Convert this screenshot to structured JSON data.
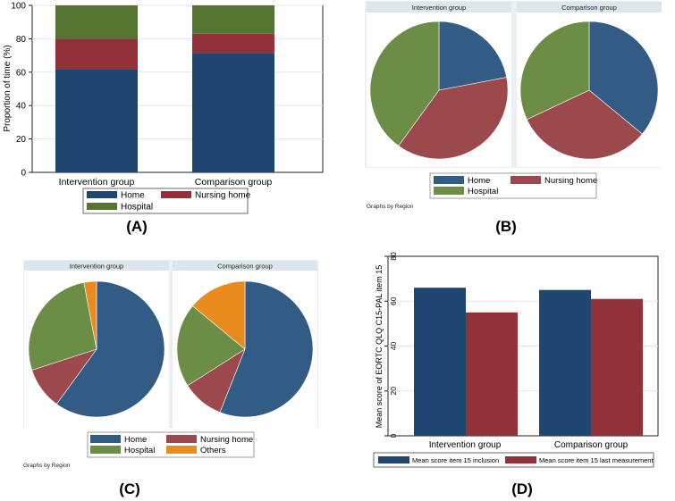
{
  "colors": {
    "home_a": "#1e4670",
    "nursing_a": "#93313a",
    "hospital_a": "#54742f",
    "home": "#325c86",
    "nursing": "#9c494e",
    "hospital": "#6b8d45",
    "others": "#ea8b1d",
    "strip": "#dce6ec",
    "panel_bg": "#e9eff3"
  },
  "chart_data": [
    {
      "panel": "A",
      "type": "bar",
      "stacked": true,
      "categories": [
        "Intervention group",
        "Comparison group"
      ],
      "series": [
        {
          "name": "Home",
          "values": [
            61.5,
            71.5
          ]
        },
        {
          "name": "Nursing home",
          "values": [
            18.5,
            11.5
          ]
        },
        {
          "name": "Hospital",
          "values": [
            20.0,
            17.0
          ]
        }
      ],
      "ylabel": "Proportion of time (%)",
      "ylim": [
        0,
        100
      ],
      "yticks": [
        "0",
        "20",
        "40",
        "60",
        "80",
        "100"
      ],
      "legend": [
        "Home",
        "Nursing home",
        "Hospital"
      ],
      "panel_label": "(A)"
    },
    {
      "panel": "B",
      "type": "pie",
      "categories": [
        "Home",
        "Nursing home",
        "Hospital"
      ],
      "series": [
        {
          "name": "Intervention group",
          "values": [
            22,
            38,
            40
          ]
        },
        {
          "name": "Comparison group",
          "values": [
            36,
            32,
            32
          ]
        }
      ],
      "legend": [
        "Home",
        "Nursing home",
        "Hospital"
      ],
      "note": "Graphs by Region",
      "panel_label": "(B)"
    },
    {
      "panel": "C",
      "type": "pie",
      "categories": [
        "Home",
        "Nursing home",
        "Hospital",
        "Others"
      ],
      "series": [
        {
          "name": "Intervention group",
          "values": [
            60,
            10,
            27,
            3
          ]
        },
        {
          "name": "Comparison group",
          "values": [
            56,
            10,
            20,
            14
          ]
        }
      ],
      "legend": [
        "Home",
        "Nursing home",
        "Hospital",
        "Others"
      ],
      "note": "Graphs by Region",
      "panel_label": "(C)"
    },
    {
      "panel": "D",
      "type": "bar",
      "categories": [
        "Intervention group",
        "Comparison group"
      ],
      "series": [
        {
          "name": "Mean score item 15 inclusion",
          "values": [
            66,
            65
          ]
        },
        {
          "name": "Mean score item 15 last measurement",
          "values": [
            55,
            61
          ]
        }
      ],
      "ylabel": "Mean score of EORTC QLQ C15-PAL item 15",
      "ylim": [
        0,
        80
      ],
      "yticks": [
        "0",
        "20",
        "40",
        "60",
        "80"
      ],
      "legend": [
        "Mean score item 15 inclusion",
        "Mean score item 15 last measurement"
      ],
      "panel_label": "(D)"
    }
  ]
}
